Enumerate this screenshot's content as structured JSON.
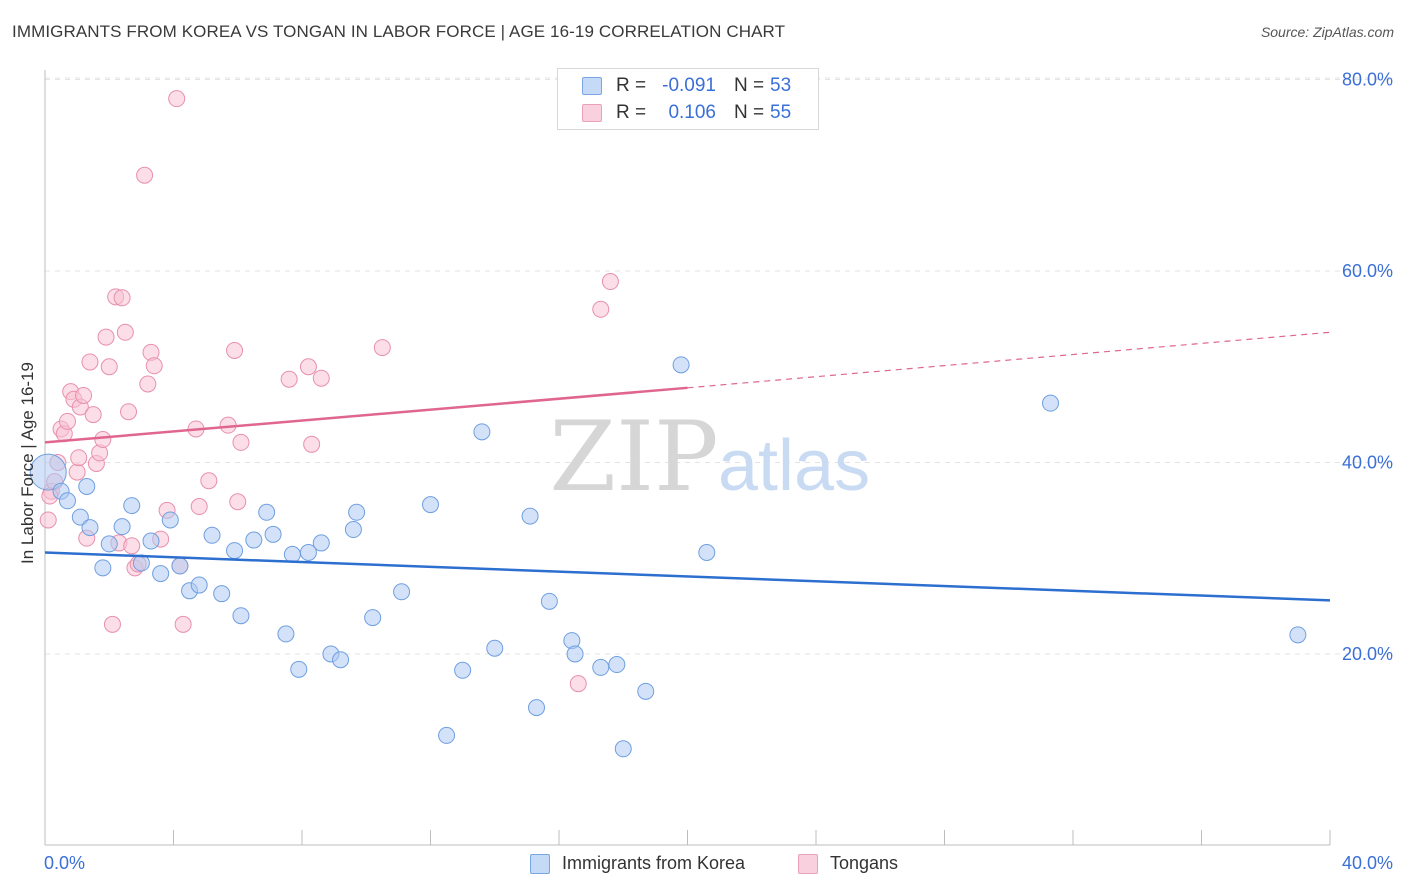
{
  "title": "IMMIGRANTS FROM KOREA VS TONGAN IN LABOR FORCE | AGE 16-19 CORRELATION CHART",
  "source": "Source: ZipAtlas.com",
  "watermark": {
    "zip": "ZIP",
    "atlas": "atlas"
  },
  "legend_top": [
    {
      "r_label": "R =",
      "r_value": "-0.091",
      "n_label": "N =",
      "n_value": "53"
    },
    {
      "r_label": "R =",
      "r_value": "0.106",
      "n_label": "N =",
      "n_value": "55"
    }
  ],
  "legend_bottom": [
    "Immigrants from Korea",
    "Tongans"
  ],
  "colors": {
    "korea_fill": "#aecbf2",
    "korea_stroke": "#6f9fe0",
    "korea_line": "#2c6fcf",
    "tongan_fill": "#f8c2d3",
    "tongan_stroke": "#e890ad",
    "tongan_line": "#e0668f",
    "axis_label": "#3a6fd8",
    "grid": "#e3e3e3"
  },
  "chart_data": {
    "type": "scatter",
    "title": "IMMIGRANTS FROM KOREA VS TONGAN IN LABOR FORCE | AGE 16-19 CORRELATION CHART",
    "xlabel": "",
    "ylabel": "In Labor Force | Age 16-19",
    "xlim": [
      0,
      40
    ],
    "ylim": [
      0,
      83
    ],
    "x_tick_labels": [
      "0.0%",
      "40.0%"
    ],
    "y_tick_values": [
      20,
      40,
      60,
      80
    ],
    "y_tick_labels": [
      "20.0%",
      "40.0%",
      "60.0%",
      "80.0%"
    ],
    "grid": true,
    "series": [
      {
        "name": "Immigrants from Korea",
        "r": -0.091,
        "n": 53,
        "trend": {
          "x": [
            0,
            40
          ],
          "y": [
            30.6,
            25.6
          ]
        },
        "points": [
          {
            "x": 0.1,
            "y": 39.0,
            "big": true
          },
          {
            "x": 0.5,
            "y": 37.0
          },
          {
            "x": 0.7,
            "y": 36.0
          },
          {
            "x": 1.1,
            "y": 34.3
          },
          {
            "x": 1.4,
            "y": 33.2
          },
          {
            "x": 1.8,
            "y": 29.0
          },
          {
            "x": 2.0,
            "y": 31.5
          },
          {
            "x": 2.4,
            "y": 33.3
          },
          {
            "x": 2.7,
            "y": 35.5
          },
          {
            "x": 3.0,
            "y": 29.5
          },
          {
            "x": 3.3,
            "y": 31.8
          },
          {
            "x": 3.6,
            "y": 28.4
          },
          {
            "x": 3.9,
            "y": 34.0
          },
          {
            "x": 4.2,
            "y": 29.2
          },
          {
            "x": 4.5,
            "y": 26.6
          },
          {
            "x": 4.8,
            "y": 27.2
          },
          {
            "x": 5.2,
            "y": 32.4
          },
          {
            "x": 5.5,
            "y": 26.3
          },
          {
            "x": 5.9,
            "y": 30.8
          },
          {
            "x": 6.1,
            "y": 24.0
          },
          {
            "x": 6.5,
            "y": 31.9
          },
          {
            "x": 6.9,
            "y": 34.8
          },
          {
            "x": 7.1,
            "y": 32.5
          },
          {
            "x": 7.5,
            "y": 22.1
          },
          {
            "x": 7.7,
            "y": 30.4
          },
          {
            "x": 7.9,
            "y": 18.4
          },
          {
            "x": 8.2,
            "y": 30.6
          },
          {
            "x": 8.6,
            "y": 31.6
          },
          {
            "x": 8.9,
            "y": 20.0
          },
          {
            "x": 9.2,
            "y": 19.4
          },
          {
            "x": 9.6,
            "y": 33.0
          },
          {
            "x": 9.7,
            "y": 34.8
          },
          {
            "x": 10.2,
            "y": 23.8
          },
          {
            "x": 11.1,
            "y": 26.5
          },
          {
            "x": 12.0,
            "y": 35.6
          },
          {
            "x": 12.5,
            "y": 11.5
          },
          {
            "x": 13.0,
            "y": 18.3
          },
          {
            "x": 13.6,
            "y": 43.2
          },
          {
            "x": 14.0,
            "y": 20.6
          },
          {
            "x": 15.1,
            "y": 34.4
          },
          {
            "x": 15.3,
            "y": 14.4
          },
          {
            "x": 15.7,
            "y": 25.5
          },
          {
            "x": 16.4,
            "y": 21.4
          },
          {
            "x": 16.5,
            "y": 20.0
          },
          {
            "x": 17.3,
            "y": 18.6
          },
          {
            "x": 17.8,
            "y": 18.9
          },
          {
            "x": 18.0,
            "y": 10.1
          },
          {
            "x": 18.7,
            "y": 16.1
          },
          {
            "x": 19.8,
            "y": 50.2
          },
          {
            "x": 20.6,
            "y": 30.6
          },
          {
            "x": 31.3,
            "y": 46.2
          },
          {
            "x": 39.0,
            "y": 22.0
          },
          {
            "x": 1.3,
            "y": 37.5
          }
        ]
      },
      {
        "name": "Tongans",
        "r": 0.106,
        "n": 55,
        "trend": {
          "x": [
            0,
            20
          ],
          "y": [
            42.1,
            47.8
          ]
        },
        "trend_dashed": {
          "x": [
            20,
            40
          ],
          "y": [
            47.8,
            53.6
          ]
        },
        "points": [
          {
            "x": 0.1,
            "y": 34.0
          },
          {
            "x": 0.2,
            "y": 37.0
          },
          {
            "x": 0.3,
            "y": 38.0
          },
          {
            "x": 0.4,
            "y": 40.0
          },
          {
            "x": 0.5,
            "y": 43.5
          },
          {
            "x": 0.6,
            "y": 43.0
          },
          {
            "x": 0.7,
            "y": 44.3
          },
          {
            "x": 0.8,
            "y": 47.4
          },
          {
            "x": 0.9,
            "y": 46.6
          },
          {
            "x": 1.0,
            "y": 39.0
          },
          {
            "x": 1.1,
            "y": 45.8
          },
          {
            "x": 1.2,
            "y": 47.0
          },
          {
            "x": 1.3,
            "y": 32.1
          },
          {
            "x": 1.4,
            "y": 50.5
          },
          {
            "x": 1.5,
            "y": 45.0
          },
          {
            "x": 1.6,
            "y": 39.9
          },
          {
            "x": 1.7,
            "y": 41.0
          },
          {
            "x": 1.8,
            "y": 42.4
          },
          {
            "x": 1.9,
            "y": 53.1
          },
          {
            "x": 2.0,
            "y": 50.0
          },
          {
            "x": 2.1,
            "y": 23.1
          },
          {
            "x": 2.2,
            "y": 57.3
          },
          {
            "x": 2.3,
            "y": 31.6
          },
          {
            "x": 2.4,
            "y": 57.2
          },
          {
            "x": 2.5,
            "y": 53.6
          },
          {
            "x": 2.6,
            "y": 45.3
          },
          {
            "x": 2.7,
            "y": 31.3
          },
          {
            "x": 2.8,
            "y": 29.0
          },
          {
            "x": 2.9,
            "y": 29.4
          },
          {
            "x": 3.1,
            "y": 70.0
          },
          {
            "x": 3.2,
            "y": 48.2
          },
          {
            "x": 3.3,
            "y": 51.5
          },
          {
            "x": 3.4,
            "y": 50.1
          },
          {
            "x": 3.6,
            "y": 32.0
          },
          {
            "x": 3.8,
            "y": 35.0
          },
          {
            "x": 4.1,
            "y": 78.0
          },
          {
            "x": 4.2,
            "y": 29.2
          },
          {
            "x": 4.3,
            "y": 23.1
          },
          {
            "x": 4.7,
            "y": 43.5
          },
          {
            "x": 4.8,
            "y": 35.4
          },
          {
            "x": 5.1,
            "y": 38.1
          },
          {
            "x": 5.7,
            "y": 43.9
          },
          {
            "x": 5.9,
            "y": 51.7
          },
          {
            "x": 6.0,
            "y": 35.9
          },
          {
            "x": 6.1,
            "y": 42.1
          },
          {
            "x": 7.6,
            "y": 48.7
          },
          {
            "x": 8.2,
            "y": 50.0
          },
          {
            "x": 8.3,
            "y": 41.9
          },
          {
            "x": 8.6,
            "y": 48.8
          },
          {
            "x": 10.5,
            "y": 52.0
          },
          {
            "x": 17.3,
            "y": 56.0
          },
          {
            "x": 17.6,
            "y": 58.9
          },
          {
            "x": 16.6,
            "y": 16.9
          },
          {
            "x": 0.15,
            "y": 36.5
          },
          {
            "x": 1.05,
            "y": 40.5
          }
        ]
      }
    ]
  }
}
